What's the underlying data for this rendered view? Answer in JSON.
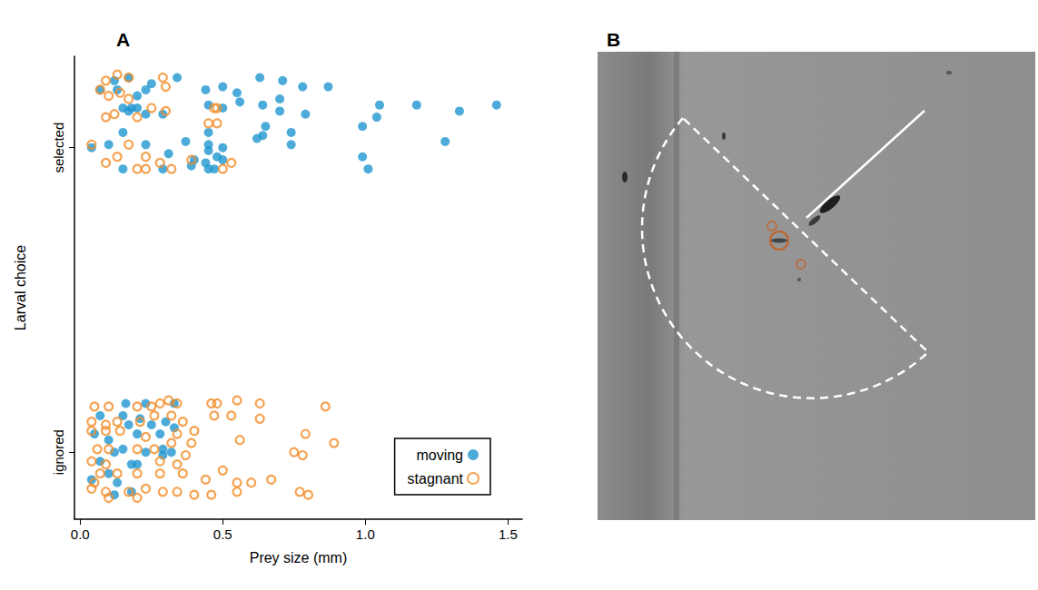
{
  "chart_data": {
    "type": "scatter",
    "x_label": "Prey size (mm)",
    "y_label": "Larval choice",
    "xlim": [
      -0.02,
      1.55
    ],
    "xticks": [
      {
        "value": 0,
        "label": "0.0"
      },
      {
        "value": 0.5,
        "label": "0.5"
      },
      {
        "value": 1,
        "label": "1.0"
      },
      {
        "value": 1.5,
        "label": "1.5"
      }
    ],
    "ylim": [
      -0.22,
      1.3
    ],
    "yticks": [
      {
        "value": 0,
        "label": "ignored"
      },
      {
        "value": 1,
        "label": "selected"
      }
    ],
    "grid": false,
    "legend": "lower right",
    "series": [
      {
        "name": "moving",
        "color": "#1f96cf",
        "marker": "circle",
        "values": [
          [
            0.12,
            1.22
          ],
          [
            0.17,
            1.23
          ],
          [
            0.25,
            1.21
          ],
          [
            0.34,
            1.23
          ],
          [
            0.07,
            1.19
          ],
          [
            0.13,
            1.19
          ],
          [
            0.2,
            1.17
          ],
          [
            0.23,
            1.19
          ],
          [
            0.44,
            1.19
          ],
          [
            0.5,
            1.2
          ],
          [
            0.55,
            1.18
          ],
          [
            0.63,
            1.23
          ],
          [
            0.71,
            1.22
          ],
          [
            0.78,
            1.2
          ],
          [
            0.87,
            1.2
          ],
          [
            0.2,
            1.13
          ],
          [
            0.18,
            1.13
          ],
          [
            0.17,
            1.12
          ],
          [
            0.15,
            1.13
          ],
          [
            0.23,
            1.11
          ],
          [
            0.29,
            1.11
          ],
          [
            0.45,
            1.14
          ],
          [
            0.5,
            1.13
          ],
          [
            0.56,
            1.15
          ],
          [
            0.64,
            1.14
          ],
          [
            0.7,
            1.16
          ],
          [
            0.7,
            1.12
          ],
          [
            0.79,
            1.11
          ],
          [
            1.05,
            1.14
          ],
          [
            1.18,
            1.14
          ],
          [
            1.33,
            1.12
          ],
          [
            1.46,
            1.14
          ],
          [
            1.04,
            1.1
          ],
          [
            0.99,
            1.07
          ],
          [
            0.65,
            1.07
          ],
          [
            0.64,
            1.04
          ],
          [
            0.74,
            1.05
          ],
          [
            0.62,
            1.03
          ],
          [
            0.45,
            1.05
          ],
          [
            0.37,
            1.02
          ],
          [
            0.45,
            1.01
          ],
          [
            0.5,
            1.0
          ],
          [
            0.74,
            1.01
          ],
          [
            1.28,
            1.02
          ],
          [
            0.04,
            1.0
          ],
          [
            0.1,
            1.01
          ],
          [
            0.15,
            1.05
          ],
          [
            0.23,
            1.01
          ],
          [
            0.31,
            0.98
          ],
          [
            0.45,
            0.99
          ],
          [
            0.48,
            0.97
          ],
          [
            0.44,
            0.95
          ],
          [
            0.5,
            0.96
          ],
          [
            0.99,
            0.97
          ],
          [
            1.01,
            0.93
          ],
          [
            0.39,
            0.94
          ],
          [
            0.45,
            0.93
          ],
          [
            0.47,
            0.93
          ],
          [
            0.15,
            0.93
          ],
          [
            0.29,
            0.93
          ],
          [
            0.4,
            0.96
          ],
          [
            0.16,
            0.16
          ],
          [
            0.23,
            0.16
          ],
          [
            0.33,
            0.16
          ],
          [
            0.07,
            0.12
          ],
          [
            0.15,
            0.12
          ],
          [
            0.21,
            0.11
          ],
          [
            0.25,
            0.09
          ],
          [
            0.3,
            0.1
          ],
          [
            0.05,
            0.06
          ],
          [
            0.1,
            0.04
          ],
          [
            0.17,
            0.09
          ],
          [
            0.2,
            0.06
          ],
          [
            0.28,
            0.06
          ],
          [
            0.33,
            0.08
          ],
          [
            0.12,
            0
          ],
          [
            0.15,
            0.01
          ],
          [
            0.23,
            0
          ],
          [
            0.29,
            0.01
          ],
          [
            0.07,
            -0.03
          ],
          [
            0.18,
            -0.04
          ],
          [
            0.2,
            -0.04
          ],
          [
            0.29,
            -0.01
          ],
          [
            0.32,
            0
          ],
          [
            0.04,
            -0.09
          ],
          [
            0.1,
            -0.07
          ],
          [
            0.13,
            -0.1
          ],
          [
            0.18,
            -0.13
          ],
          [
            0.12,
            -0.14
          ]
        ]
      },
      {
        "name": "stagnant",
        "color": "#f28c28",
        "marker": "ring",
        "values": [
          [
            0.09,
            1.22
          ],
          [
            0.17,
            1.23
          ],
          [
            0.29,
            1.23
          ],
          [
            0.3,
            1.2
          ],
          [
            0.07,
            1.19
          ],
          [
            0.1,
            1.17
          ],
          [
            0.14,
            1.18
          ],
          [
            0.17,
            1.16
          ],
          [
            0.25,
            1.13
          ],
          [
            0.3,
            1.12
          ],
          [
            0.09,
            1.1
          ],
          [
            0.12,
            1.11
          ],
          [
            0.2,
            1.1
          ],
          [
            0.47,
            1.13
          ],
          [
            0.48,
            1.08
          ],
          [
            0.45,
            1.08
          ],
          [
            0.04,
            1.01
          ],
          [
            0.17,
            1.01
          ],
          [
            0.23,
            0.97
          ],
          [
            0.13,
            0.97
          ],
          [
            0.09,
            0.95
          ],
          [
            0.2,
            0.93
          ],
          [
            0.23,
            0.93
          ],
          [
            0.28,
            0.95
          ],
          [
            0.32,
            0.93
          ],
          [
            0.53,
            0.95
          ],
          [
            0.5,
            0.93
          ],
          [
            0.39,
            0.96
          ],
          [
            0.13,
            1.24
          ],
          [
            0.48,
            1.13
          ],
          [
            0.05,
            0.15
          ],
          [
            0.1,
            0.15
          ],
          [
            0.2,
            0.15
          ],
          [
            0.25,
            0.15
          ],
          [
            0.28,
            0.16
          ],
          [
            0.31,
            0.17
          ],
          [
            0.34,
            0.16
          ],
          [
            0.46,
            0.16
          ],
          [
            0.48,
            0.16
          ],
          [
            0.55,
            0.17
          ],
          [
            0.63,
            0.16
          ],
          [
            0.86,
            0.15
          ],
          [
            0.04,
            0.1
          ],
          [
            0.09,
            0.09
          ],
          [
            0.13,
            0.1
          ],
          [
            0.21,
            0.1
          ],
          [
            0.26,
            0.12
          ],
          [
            0.32,
            0.12
          ],
          [
            0.36,
            0.1
          ],
          [
            0.47,
            0.12
          ],
          [
            0.53,
            0.12
          ],
          [
            0.63,
            0.11
          ],
          [
            0.04,
            0.07
          ],
          [
            0.09,
            0.07
          ],
          [
            0.14,
            0.07
          ],
          [
            0.23,
            0.05
          ],
          [
            0.34,
            0.06
          ],
          [
            0.4,
            0.07
          ],
          [
            0.06,
            0.01
          ],
          [
            0.1,
            0.01
          ],
          [
            0.2,
            0.01
          ],
          [
            0.26,
            0.01
          ],
          [
            0.32,
            0.03
          ],
          [
            0.39,
            0.03
          ],
          [
            0.56,
            0.04
          ],
          [
            0.79,
            0.06
          ],
          [
            0.89,
            0.03
          ],
          [
            0.04,
            -0.03
          ],
          [
            0.09,
            -0.04
          ],
          [
            0.28,
            -0.03
          ],
          [
            0.37,
            -0.01
          ],
          [
            0.34,
            -0.04
          ],
          [
            0.07,
            -0.07
          ],
          [
            0.13,
            -0.07
          ],
          [
            0.2,
            -0.07
          ],
          [
            0.28,
            -0.07
          ],
          [
            0.36,
            -0.07
          ],
          [
            0.04,
            -0.12
          ],
          [
            0.09,
            -0.13
          ],
          [
            0.17,
            -0.13
          ],
          [
            0.23,
            -0.12
          ],
          [
            0.29,
            -0.13
          ],
          [
            0.34,
            -0.13
          ],
          [
            0.4,
            -0.14
          ],
          [
            0.46,
            -0.14
          ],
          [
            0.55,
            -0.13
          ],
          [
            0.6,
            -0.1
          ],
          [
            0.77,
            -0.13
          ],
          [
            0.8,
            -0.14
          ],
          [
            0.55,
            -0.1
          ],
          [
            0.75,
            0
          ],
          [
            0.78,
            -0.01
          ],
          [
            0.67,
            -0.09
          ],
          [
            0.1,
            -0.15
          ],
          [
            0.2,
            -0.15
          ],
          [
            0.05,
            -0.1
          ],
          [
            0.44,
            -0.09
          ],
          [
            0.5,
            -0.06
          ]
        ]
      }
    ]
  },
  "panel_labels": [
    "A",
    "B"
  ]
}
